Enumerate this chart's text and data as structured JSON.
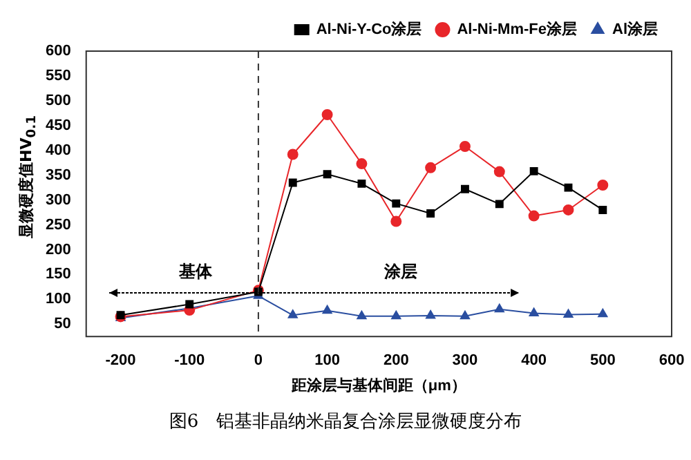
{
  "chart_data": {
    "type": "line",
    "title": "图6　铝基非晶纳米晶复合涂层显微硬度分布",
    "xlabel": "距涂层与基体间距（μm）",
    "ylabel": "显微硬度值HV$_{0.1}$",
    "x": [
      -200,
      -100,
      0,
      50,
      100,
      150,
      200,
      250,
      300,
      350,
      400,
      450,
      500
    ],
    "series": [
      {
        "name": "Al-Ni-Y-Co涂层",
        "color": "#000000",
        "marker": "square",
        "values": [
          68,
          90,
          115,
          335,
          352,
          333,
          293,
          273,
          322,
          292,
          358,
          325,
          280
        ]
      },
      {
        "name": "Al-Ni-Mm-Fe涂层",
        "color": "#e8262a",
        "marker": "circle",
        "values": [
          65,
          78,
          118,
          392,
          472,
          373,
          257,
          365,
          408,
          357,
          268,
          280,
          330
        ]
      },
      {
        "name": "Al涂层",
        "color": "#2a4ea0",
        "marker": "triangle",
        "values": [
          62,
          82,
          107,
          68,
          77,
          66,
          66,
          67,
          66,
          80,
          72,
          69,
          70
        ]
      }
    ],
    "xlim": [
      -250,
      600
    ],
    "xticks": [
      -200,
      -100,
      0,
      100,
      200,
      300,
      400,
      500,
      600
    ],
    "ylim": [
      25,
      600
    ],
    "yticks": [
      50,
      100,
      150,
      200,
      250,
      300,
      350,
      400,
      450,
      500,
      550,
      600
    ],
    "ref_lines": [
      {
        "axis": "x",
        "value": 0,
        "line_style": "dashed",
        "color": "#333333"
      }
    ],
    "annotations": [
      "基体",
      "涂层"
    ],
    "grid": false,
    "legend": "top right"
  }
}
